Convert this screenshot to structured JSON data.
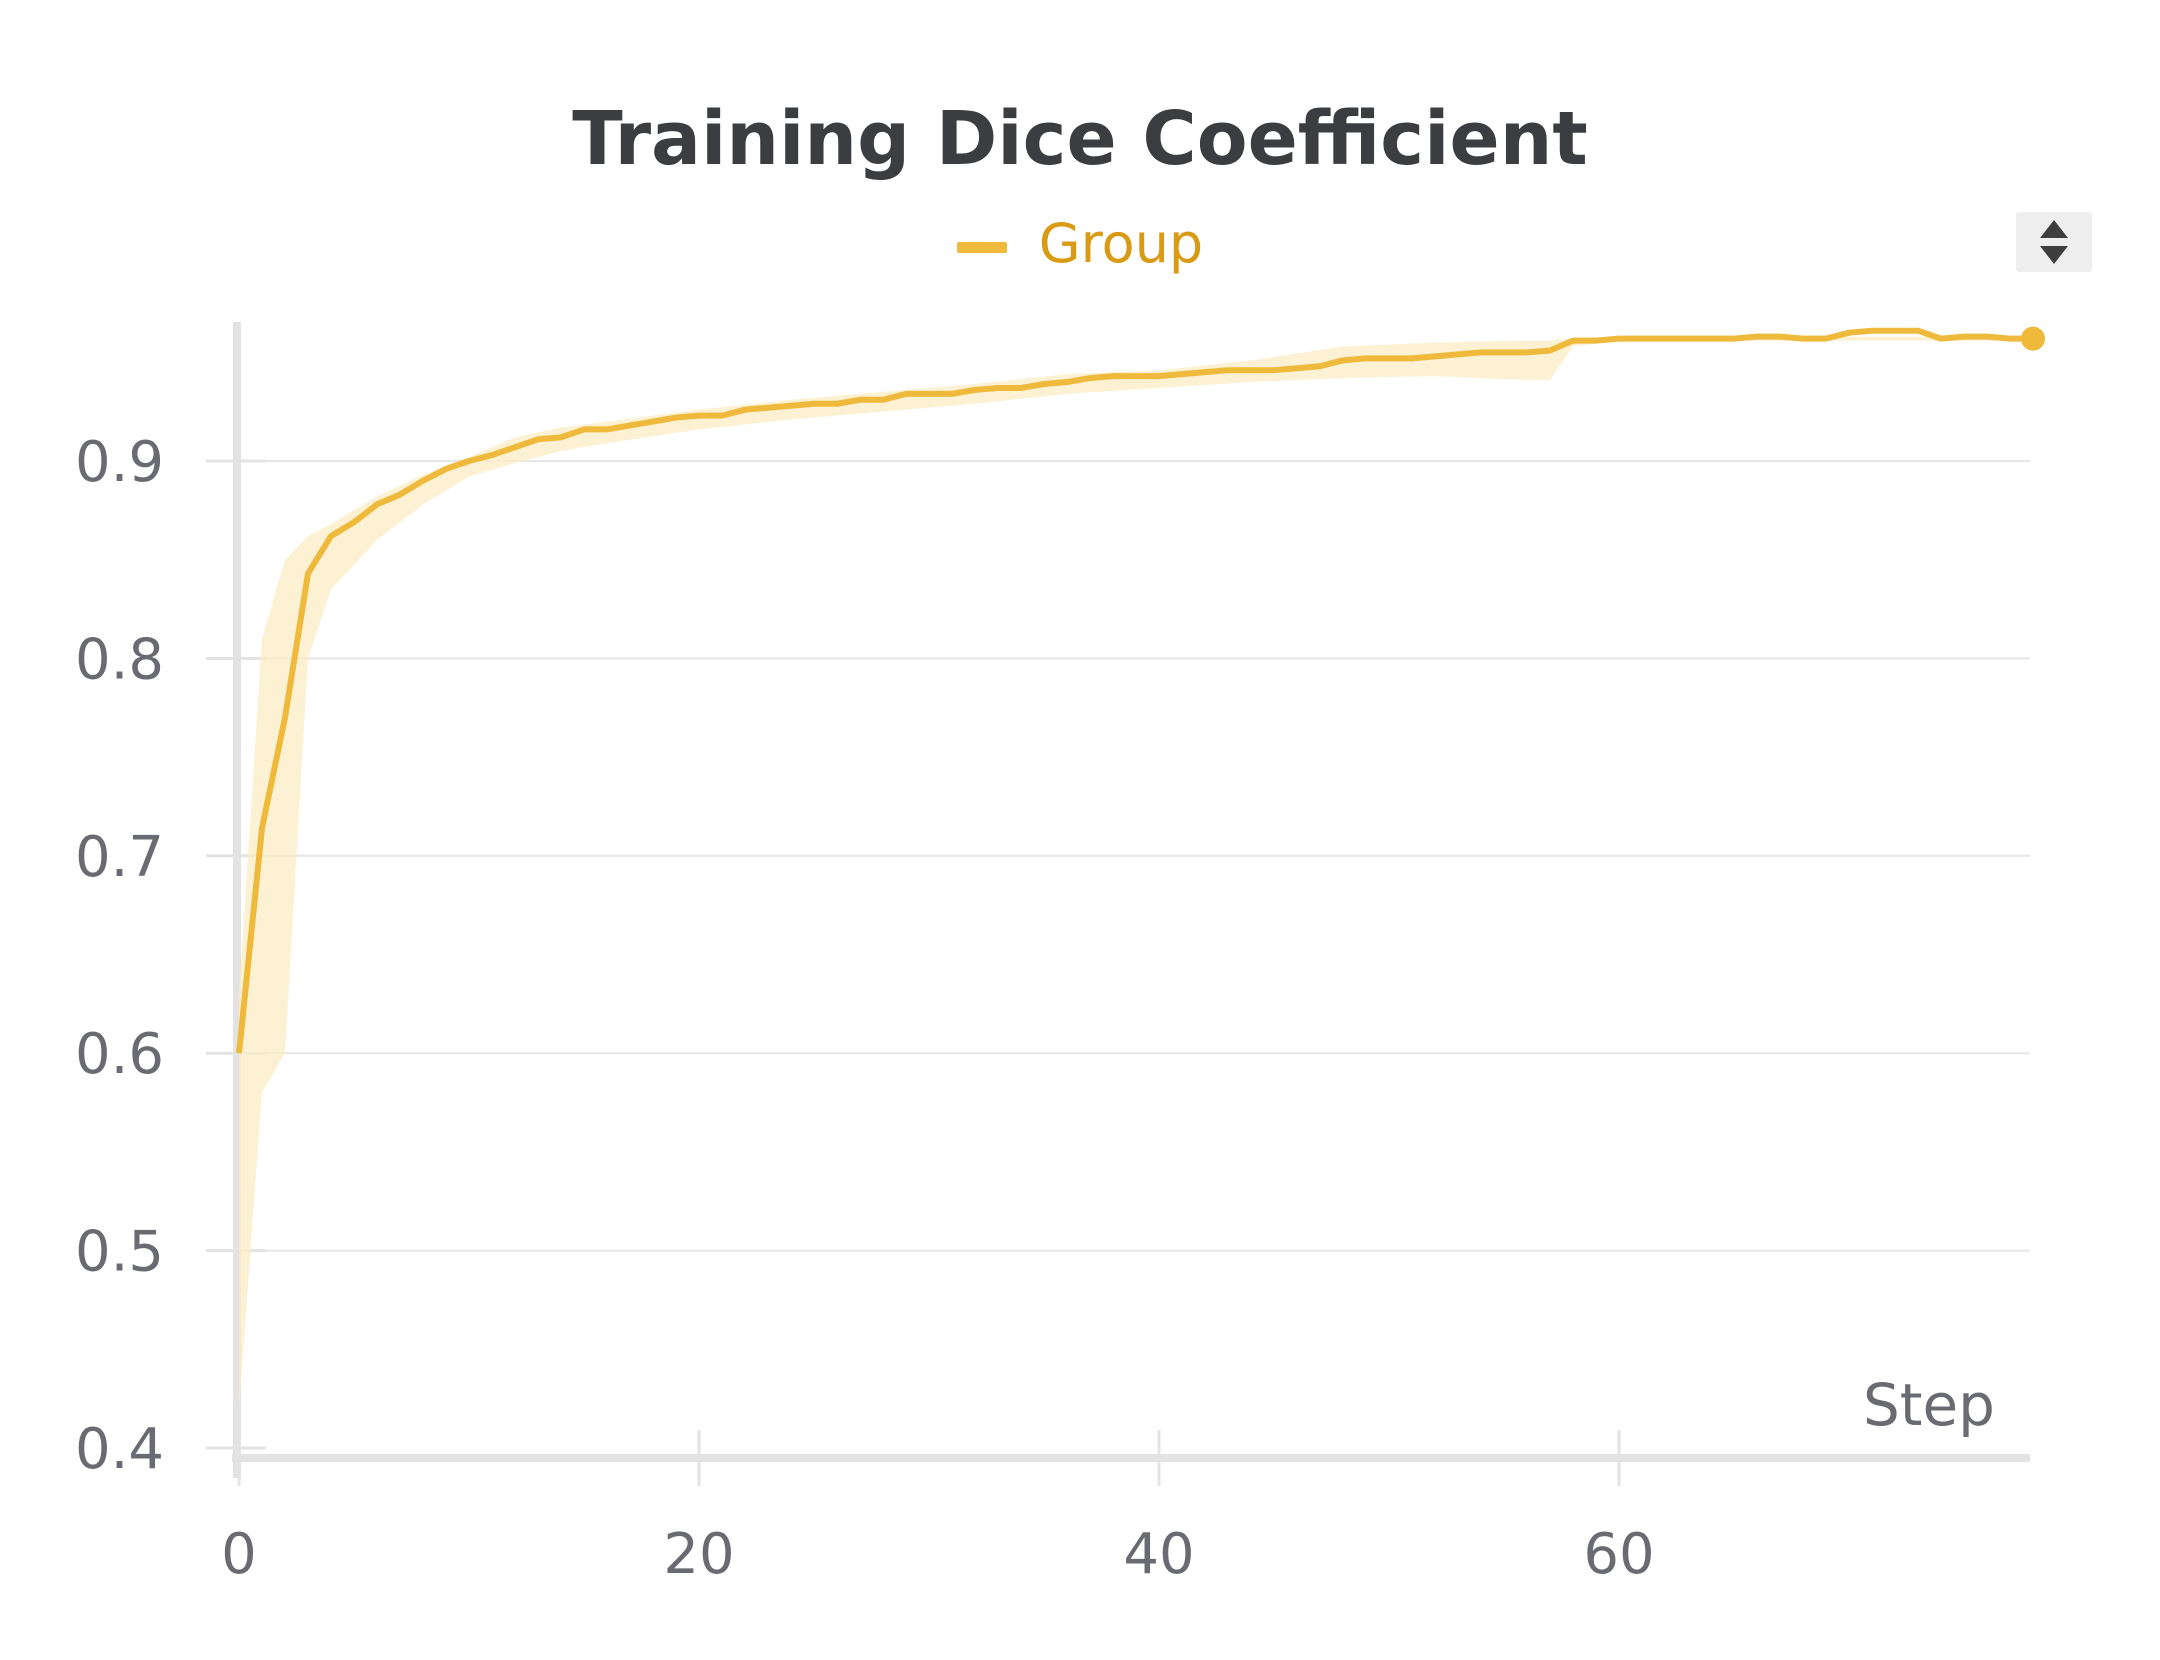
{
  "colors": {
    "series": "#efb93b",
    "band": "#fbecc4",
    "legend_text": "#d99a14",
    "grid": "#e6e6e6",
    "axis": "#e3e3e3",
    "tick_text": "#6a6b72"
  },
  "legend": {
    "scroll_icon": "up-down-arrows-icon"
  },
  "chart_data": {
    "type": "line",
    "title": "Training Dice Coefficient",
    "xlabel": "Step",
    "ylabel": "",
    "xlim": [
      0,
      78
    ],
    "ylim": [
      0.4,
      0.97
    ],
    "xticks": [
      0,
      20,
      40,
      60
    ],
    "xtick_labels": [
      "0",
      "20",
      "40",
      "60"
    ],
    "yticks": [
      0.4,
      0.5,
      0.6,
      0.7,
      0.8,
      0.9
    ],
    "ytick_labels": [
      "0.4",
      "0.5",
      "0.6",
      "0.7",
      "0.8",
      "0.9"
    ],
    "grid": true,
    "legend_position": "top-center",
    "series": [
      {
        "name": "Group",
        "x": [
          0,
          1,
          2,
          3,
          4,
          5,
          6,
          7,
          8,
          9,
          10,
          11,
          12,
          13,
          14,
          15,
          16,
          17,
          18,
          19,
          20,
          21,
          22,
          23,
          24,
          25,
          26,
          27,
          28,
          29,
          30,
          31,
          32,
          33,
          34,
          35,
          36,
          37,
          38,
          39,
          40,
          41,
          42,
          43,
          44,
          45,
          46,
          47,
          48,
          49,
          50,
          51,
          52,
          53,
          54,
          55,
          56,
          57,
          58,
          59,
          60,
          61,
          62,
          63,
          64,
          65,
          66,
          67,
          68,
          69,
          70,
          71,
          72,
          73,
          74,
          75,
          76,
          77,
          78
        ],
        "y": [
          0.6,
          0.714,
          0.77,
          0.843,
          0.862,
          0.869,
          0.878,
          0.883,
          0.89,
          0.896,
          0.9,
          0.903,
          0.907,
          0.911,
          0.912,
          0.916,
          0.916,
          0.918,
          0.92,
          0.922,
          0.923,
          0.923,
          0.926,
          0.927,
          0.928,
          0.929,
          0.929,
          0.931,
          0.931,
          0.934,
          0.934,
          0.934,
          0.936,
          0.937,
          0.937,
          0.939,
          0.94,
          0.942,
          0.943,
          0.943,
          0.943,
          0.944,
          0.945,
          0.946,
          0.946,
          0.946,
          0.947,
          0.948,
          0.951,
          0.952,
          0.952,
          0.952,
          0.953,
          0.954,
          0.955,
          0.955,
          0.955,
          0.956,
          0.961,
          0.961,
          0.962,
          0.962,
          0.962,
          0.962,
          0.962,
          0.962,
          0.963,
          0.963,
          0.962,
          0.962,
          0.965,
          0.966,
          0.966,
          0.966,
          0.962,
          0.963,
          0.963,
          0.962,
          0.962
        ]
      }
    ],
    "band": {
      "x": [
        0,
        1,
        2,
        3,
        4,
        6,
        8,
        10,
        12,
        14,
        16,
        20,
        24,
        28,
        32,
        36,
        40,
        44,
        48,
        52,
        56,
        57,
        58,
        60,
        78
      ],
      "upper": [
        0.63,
        0.81,
        0.85,
        0.862,
        0.868,
        0.882,
        0.893,
        0.902,
        0.912,
        0.917,
        0.92,
        0.926,
        0.931,
        0.935,
        0.939,
        0.944,
        0.946,
        0.951,
        0.958,
        0.96,
        0.961,
        0.961,
        0.962,
        0.963,
        0.963
      ],
      "lower": [
        0.42,
        0.58,
        0.6,
        0.8,
        0.835,
        0.86,
        0.878,
        0.892,
        0.899,
        0.905,
        0.909,
        0.916,
        0.921,
        0.925,
        0.929,
        0.934,
        0.937,
        0.94,
        0.942,
        0.943,
        0.941,
        0.941,
        0.958,
        0.961,
        0.961
      ]
    }
  }
}
